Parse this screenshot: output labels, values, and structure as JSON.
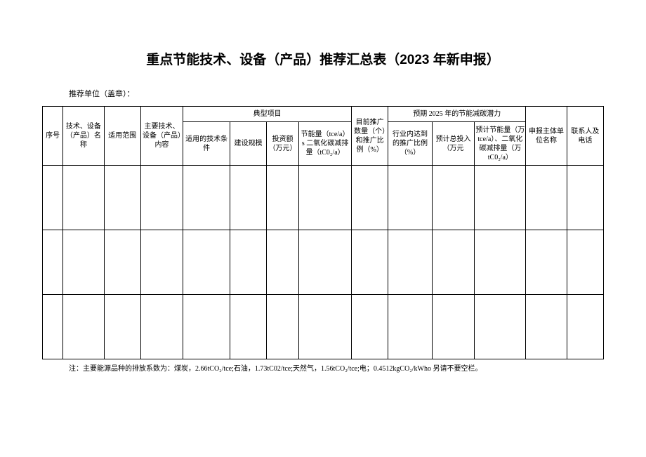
{
  "title": "重点节能技术、设备（产品）推荐汇总表（2023 年新申报）",
  "subtitle": "推荐单位（盖章）：",
  "headers": {
    "seq": "序号",
    "tech_name": "技术、设备（产品）名称",
    "scope": "适用范围",
    "main_tech": "主要技术、设备（产品）内容",
    "typical_project": "典型项目",
    "typical_sub": {
      "condition": "适用的技术条件",
      "scale": "建设规模",
      "investment": "投资额（万元）",
      "energy_saving": "节能量（tce/a）s 二氧化碳减排量（tC0₂/a）"
    },
    "current_promo": "目前推广数量（个）和推广比例（%）",
    "expected_2025": "预期 2025 年的节能减碳潜力",
    "expected_sub": {
      "industry_ratio": "行业内达到的推广比例（%）",
      "total_invest": "预计总投入（万元",
      "pred_energy": "预计节能量（万 tce/a）、二氧化碳减排量（万 tC0₂/a）"
    },
    "unit_name": "申报主体单位名称",
    "contact": "联系人及电话"
  },
  "footnote": "注：主要能源品种的排放系数为：煤炭，2.66tCO₂/tce;石油，1.73tC02/tce;天然气，1.56tCO₂/tce;电；0.4512kgCO₂/kWho 另请不要空栏。",
  "col_widths": {
    "seq": 28,
    "tech_name": 56,
    "scope": 50,
    "main_tech": 58,
    "condition": 64,
    "scale": 50,
    "investment": 44,
    "energy_saving": 72,
    "current_promo": 50,
    "industry_ratio": 60,
    "total_invest": 58,
    "pred_energy": 70,
    "unit_name": 56,
    "contact": 50
  }
}
